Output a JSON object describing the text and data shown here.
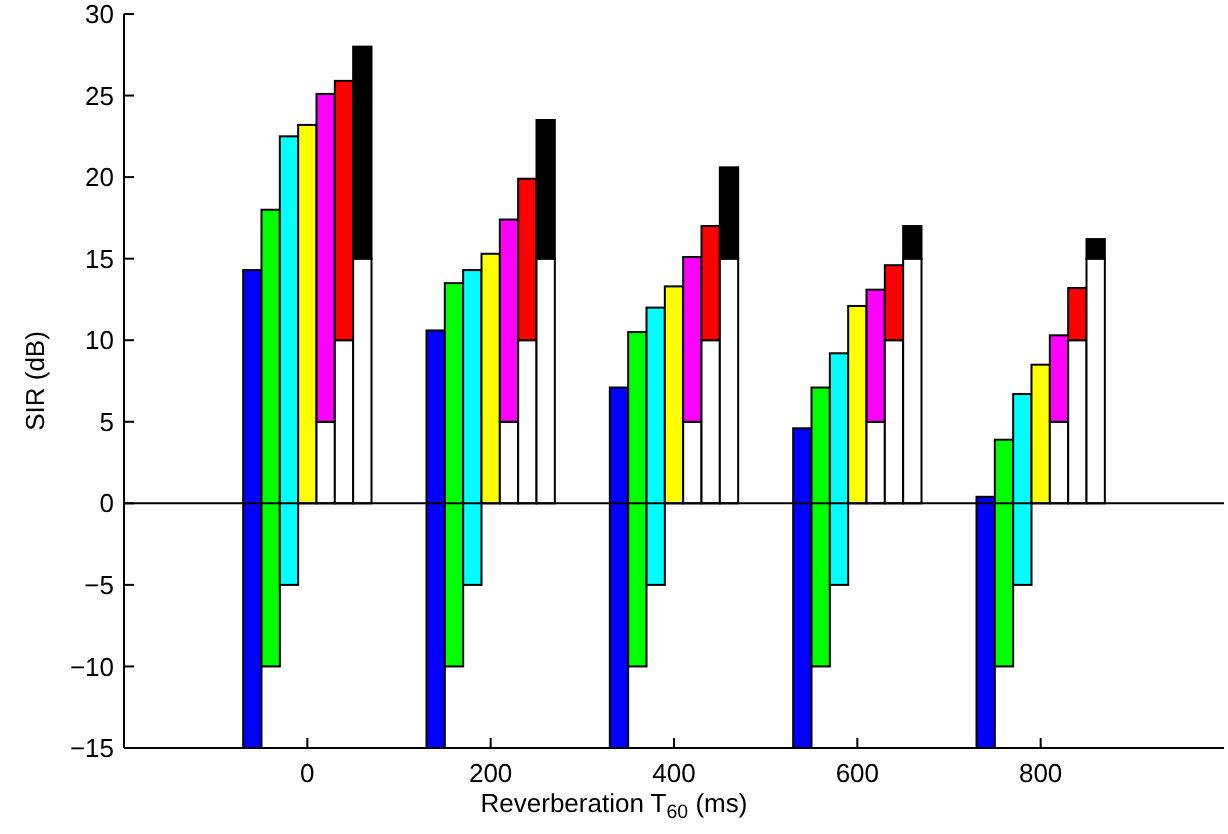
{
  "chart_data": {
    "type": "bar",
    "xlabel": "Reverberation T$_{60}$ (ms)",
    "ylabel": "SIR (dB)",
    "xlim": [
      -200,
      1000
    ],
    "xticks": [
      0,
      200,
      400,
      600,
      800
    ],
    "ylim": [
      -15,
      30
    ],
    "yticks": [
      -15,
      -10,
      -5,
      0,
      5,
      10,
      15,
      20,
      25,
      30
    ],
    "grid": false,
    "ref_lines": [
      {
        "axis": "y",
        "value": 0,
        "color": "#000000"
      }
    ],
    "series": [
      {
        "color": "#0000ff",
        "x": [
          -60,
          140,
          340,
          540,
          740
        ],
        "base": [
          -15,
          -15,
          -15,
          -15,
          -15
        ],
        "values": [
          29.3,
          25.6,
          22.1,
          19.6,
          15.4
        ]
      },
      {
        "color": "#00ff00",
        "x": [
          -40,
          160,
          360,
          560,
          760
        ],
        "base": [
          -10,
          -10,
          -10,
          -10,
          -10
        ],
        "values": [
          28.0,
          23.5,
          20.5,
          17.1,
          13.9
        ]
      },
      {
        "color": "#00ffff",
        "x": [
          -20,
          180,
          380,
          580,
          780
        ],
        "base": [
          -5,
          -5,
          -5,
          -5,
          -5
        ],
        "values": [
          27.5,
          19.3,
          17.0,
          14.2,
          11.7
        ]
      },
      {
        "color": "#ffff00",
        "x": [
          0,
          200,
          400,
          600,
          800
        ],
        "base": [
          0,
          0,
          0,
          0,
          0
        ],
        "values": [
          23.2,
          15.3,
          13.3,
          12.1,
          8.5
        ]
      },
      {
        "color": "#ffffff",
        "x": [
          20,
          220,
          420,
          620,
          820
        ],
        "base": [
          0,
          0,
          0,
          0,
          0
        ],
        "values": [
          5,
          5,
          5,
          5,
          5
        ]
      },
      {
        "color": "#ff00ff",
        "x": [
          20,
          220,
          420,
          620,
          820
        ],
        "base": [
          5,
          5,
          5,
          5,
          5
        ],
        "values": [
          20.1,
          12.4,
          10.1,
          8.1,
          5.3
        ]
      },
      {
        "color": "#ffffff",
        "x": [
          40,
          240,
          440,
          640,
          840
        ],
        "base": [
          0,
          0,
          0,
          0,
          0
        ],
        "values": [
          10,
          10,
          10,
          10,
          10
        ]
      },
      {
        "color": "#ff0000",
        "x": [
          40,
          240,
          440,
          640,
          840
        ],
        "base": [
          10,
          10,
          10,
          10,
          10
        ],
        "values": [
          15.9,
          9.9,
          7.0,
          4.6,
          3.2
        ]
      },
      {
        "color": "#ffffff",
        "x": [
          60,
          260,
          460,
          660,
          860
        ],
        "base": [
          0,
          0,
          0,
          0,
          0
        ],
        "values": [
          15,
          15,
          15,
          15,
          15
        ]
      },
      {
        "color": "#000000",
        "x": [
          60,
          260,
          460,
          660,
          860
        ],
        "base": [
          15,
          15,
          15,
          15,
          15
        ],
        "values": [
          13.0,
          8.5,
          5.6,
          2.0,
          1.2
        ]
      }
    ]
  }
}
